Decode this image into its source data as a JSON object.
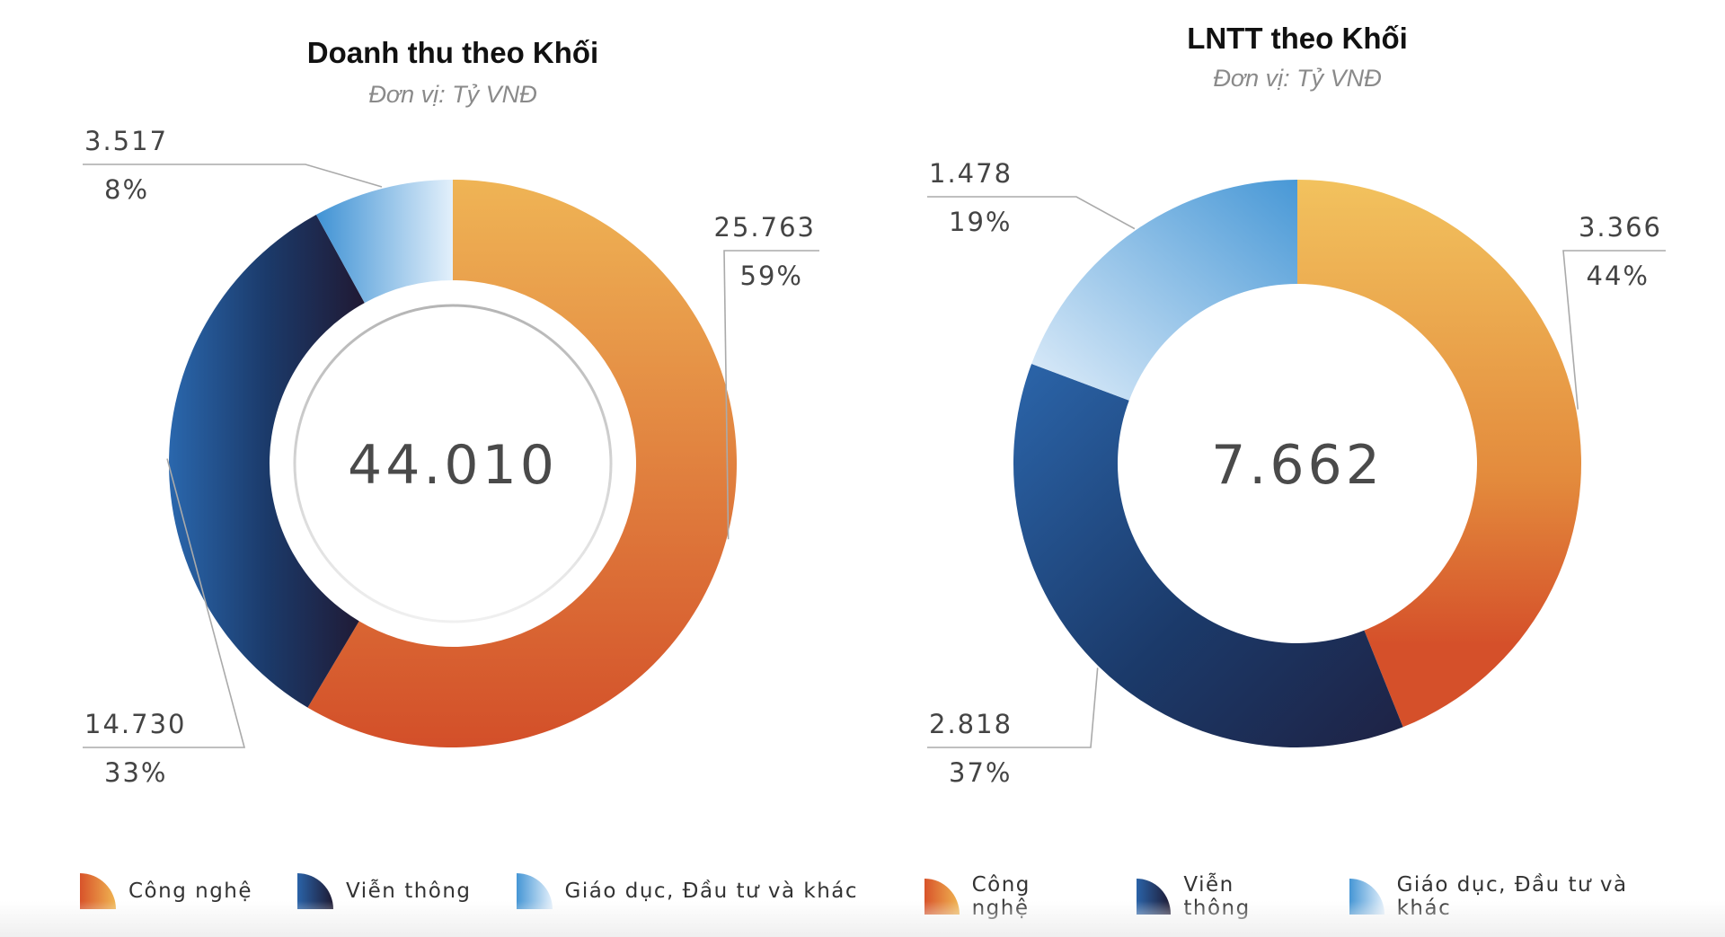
{
  "chart_data": [
    {
      "type": "pie",
      "variant": "donut",
      "title": "Doanh thu theo Khối",
      "subtitle": "Đơn vị: Tỷ VNĐ",
      "total_label": "44.010",
      "total": 44010,
      "categories": [
        "Công nghệ",
        "Viễn thông",
        "Giáo dục, Đầu tư và khác"
      ],
      "values": [
        25763,
        14730,
        3517
      ],
      "value_labels": [
        "25.763",
        "14.730",
        "3.517"
      ],
      "percent_labels": [
        "59%",
        "33%",
        "8%"
      ],
      "legend_position": "bottom"
    },
    {
      "type": "pie",
      "variant": "donut",
      "title": "LNTT theo Khối",
      "subtitle": "Đơn vị: Tỷ VNĐ",
      "total_label": "7.662",
      "total": 7662,
      "categories": [
        "Công nghệ",
        "Viễn thông",
        "Giáo dục, Đầu tư và khác"
      ],
      "values": [
        3366,
        2818,
        1478
      ],
      "value_labels": [
        "3.366",
        "2.818",
        "1.478"
      ],
      "percent_labels": [
        "44%",
        "37%",
        "19%"
      ],
      "legend_position": "bottom"
    }
  ],
  "colors": {
    "cong_nghe": [
      "#f0b552",
      "#d6502a"
    ],
    "vien_thong": [
      "#2a68b0",
      "#1e1a33"
    ],
    "giao_duc": [
      "#4b9ad6",
      "#dcecf9"
    ],
    "leader_line": "#aaaaaa"
  }
}
